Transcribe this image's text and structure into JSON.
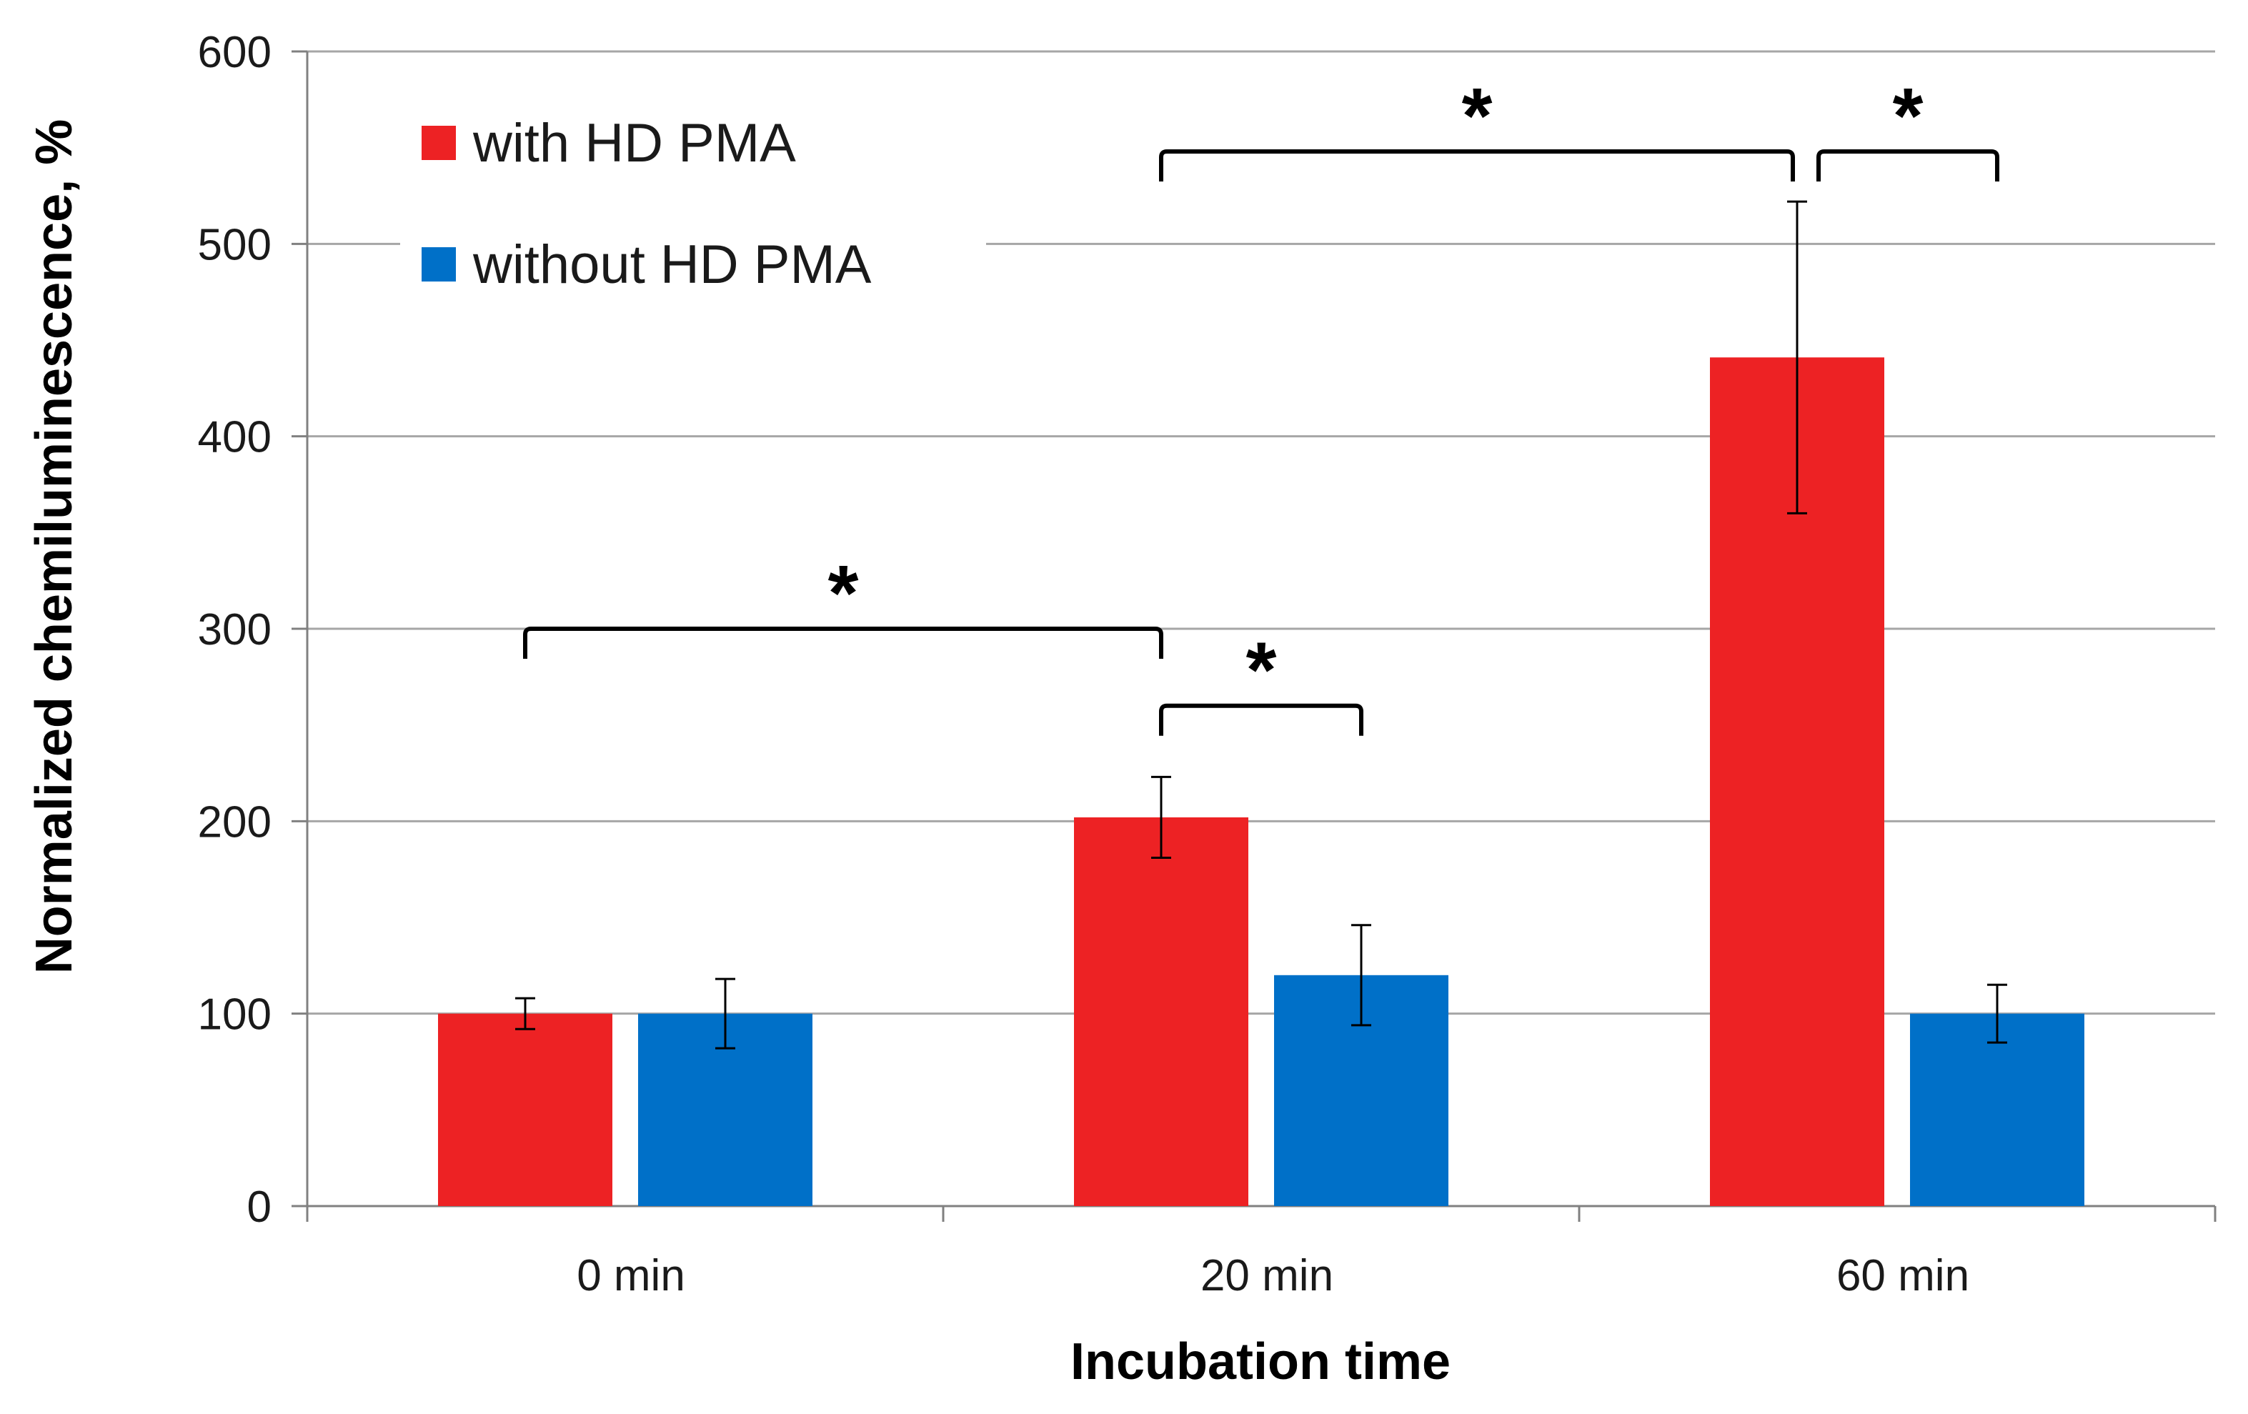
{
  "chart_data": {
    "type": "bar",
    "title": "",
    "xlabel": "Incubation time",
    "ylabel": "Normalized chemiluminescence, %",
    "categories": [
      "0 min",
      "20 min",
      "60 min"
    ],
    "ylim": [
      0,
      600
    ],
    "yticks": [
      0,
      100,
      200,
      300,
      400,
      500,
      600
    ],
    "grid": true,
    "legend_position": "top-left",
    "series": [
      {
        "name": "with HD PMA",
        "color": "#ED2224",
        "values": [
          100,
          202,
          441
        ],
        "error": [
          8,
          21,
          81
        ]
      },
      {
        "name": "without HD PMA",
        "color": "#0070C8",
        "values": [
          100,
          120,
          100
        ],
        "error": [
          18,
          26,
          15
        ]
      }
    ],
    "significance": [
      {
        "from": {
          "category": 0,
          "series": 0
        },
        "to": {
          "category": 1,
          "series": 0
        },
        "label": "*",
        "level": 300
      },
      {
        "from": {
          "category": 1,
          "series": 0
        },
        "to": {
          "category": 1,
          "series": 1
        },
        "label": "*",
        "level": 260
      },
      {
        "from": {
          "category": 1,
          "series": 0
        },
        "to": {
          "category": 2,
          "series": 0
        },
        "label": "*",
        "level": 548
      },
      {
        "from": {
          "category": 2,
          "series": 0
        },
        "to": {
          "category": 2,
          "series": 1
        },
        "label": "*",
        "level": 548
      }
    ]
  }
}
